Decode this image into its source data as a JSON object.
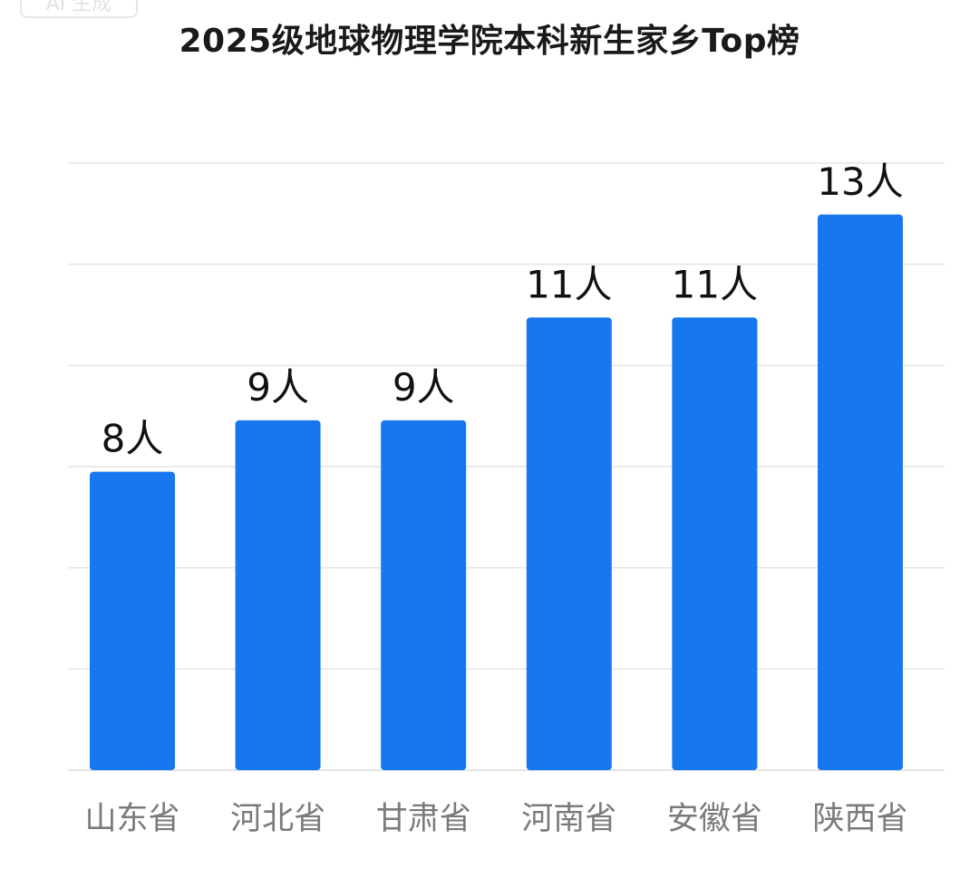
{
  "watermark": "AI 生成",
  "chart_data": {
    "type": "bar",
    "title": "2025级地球物理学院本科新生家乡Top榜",
    "xlabel": "",
    "ylabel": "",
    "categories": [
      "山东省",
      "河北省",
      "甘肃省",
      "河南省",
      "安徽省",
      "陕西省"
    ],
    "values": [
      8,
      9,
      9,
      11,
      11,
      13
    ],
    "data_labels": [
      "8人",
      "9人",
      "9人",
      "11人",
      "11人",
      "13人"
    ],
    "ylim": [
      2.2,
      14
    ],
    "grid": true,
    "legend": "none",
    "bar_color": "#1777ee",
    "gridline_color": "#e4e4e4",
    "label_color": "#111111",
    "category_color": "#7a7a7a"
  }
}
